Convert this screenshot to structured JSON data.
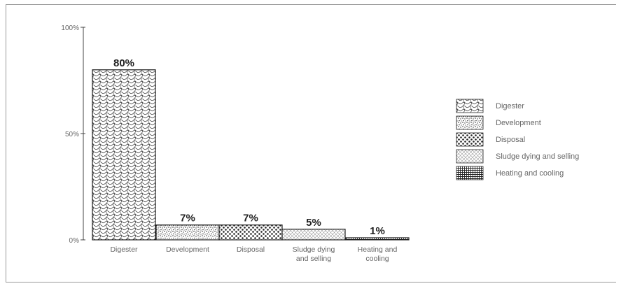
{
  "chart_data": {
    "type": "bar",
    "categories": [
      [
        "Digester"
      ],
      [
        "Development"
      ],
      [
        "Disposal"
      ],
      [
        "Sludge dying",
        "and selling"
      ],
      [
        "Heating and",
        "cooling"
      ]
    ],
    "values": [
      80,
      7,
      7,
      5,
      1
    ],
    "data_labels": [
      "80%",
      "7%",
      "7%",
      "5%",
      "1%"
    ],
    "y_ticks": [
      {
        "value": 0,
        "label": "0%"
      },
      {
        "value": 50,
        "label": "50%"
      },
      {
        "value": 100,
        "label": "100%"
      }
    ],
    "ylim": [
      0,
      100
    ],
    "title": "",
    "xlabel": "",
    "ylabel": "",
    "grid": false,
    "legend": {
      "placement": "right",
      "entries": [
        "Digester",
        "Development",
        "Disposal",
        "Sludge dying and selling",
        "Heating and cooling"
      ]
    },
    "patterns": [
      "wavy",
      "stipple-fine",
      "dots-coarse",
      "crosshatch-light",
      "grid-dense"
    ],
    "colors": {
      "ink": "#222222",
      "axis": "#444444",
      "text": "#666666"
    }
  }
}
